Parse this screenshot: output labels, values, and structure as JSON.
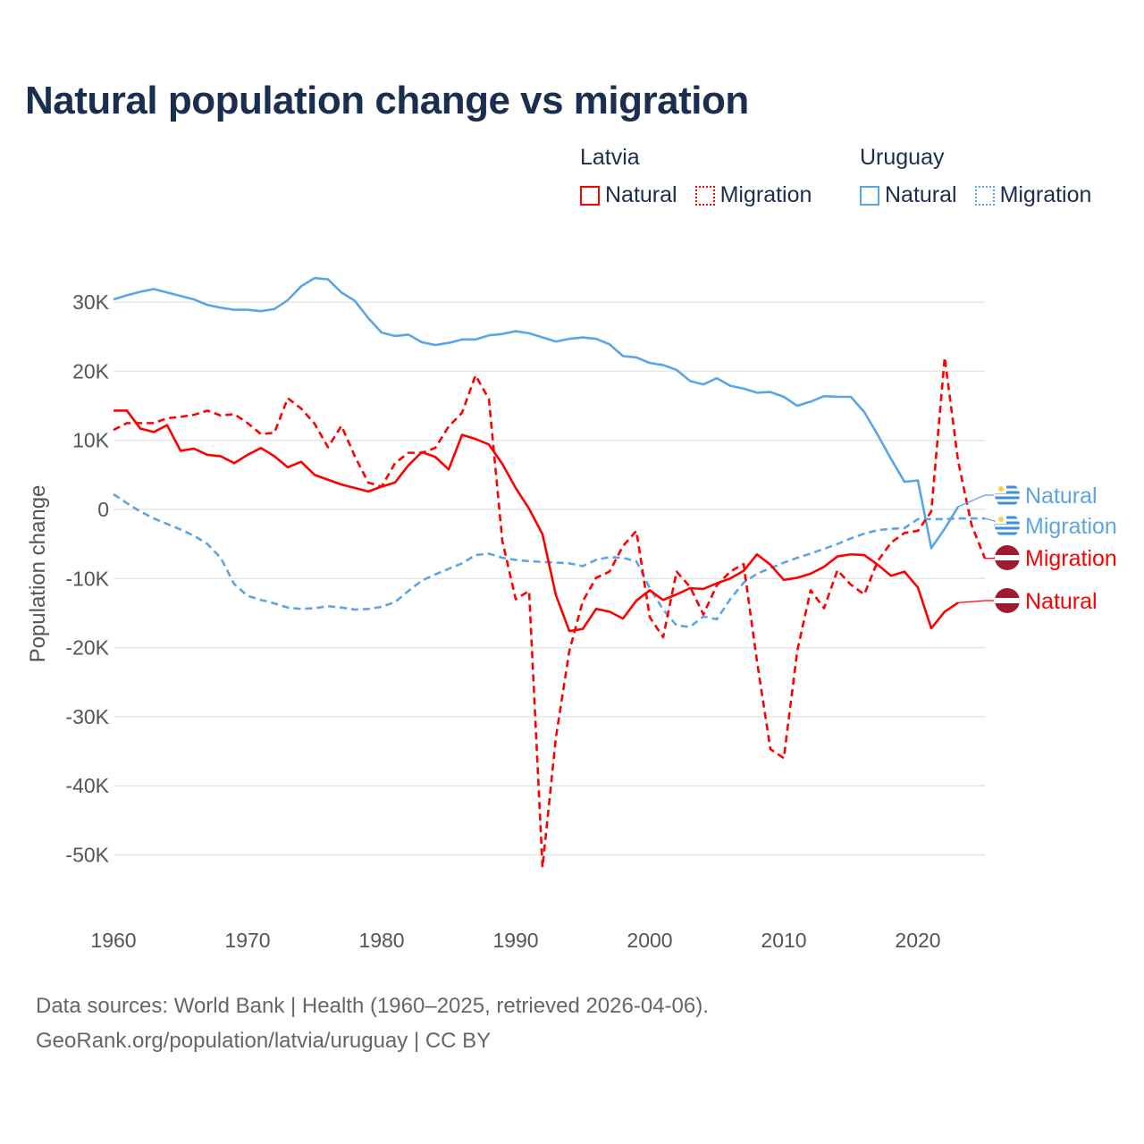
{
  "chart_data": {
    "type": "line",
    "title": "Natural population change vs migration",
    "ylabel": "Population change",
    "xlabel": "",
    "ylim": [
      -55000,
      35000
    ],
    "xlim": [
      1960,
      2025
    ],
    "grid": true,
    "legend_placement": "top-right",
    "y_ticks": [
      {
        "v": 30000,
        "label": "30K"
      },
      {
        "v": 20000,
        "label": "20K"
      },
      {
        "v": 10000,
        "label": "10K"
      },
      {
        "v": 0,
        "label": "0"
      },
      {
        "v": -10000,
        "label": "-10K"
      },
      {
        "v": -20000,
        "label": "-20K"
      },
      {
        "v": -30000,
        "label": "-30K"
      },
      {
        "v": -40000,
        "label": "-40K"
      },
      {
        "v": -50000,
        "label": "-50K"
      }
    ],
    "x_ticks": [
      {
        "v": 1960,
        "label": "1960"
      },
      {
        "v": 1970,
        "label": "1970"
      },
      {
        "v": 1980,
        "label": "1980"
      },
      {
        "v": 1990,
        "label": "1990"
      },
      {
        "v": 2000,
        "label": "2000"
      },
      {
        "v": 2010,
        "label": "2010"
      },
      {
        "v": 2020,
        "label": "2020"
      }
    ],
    "legend": [
      {
        "group": "Latvia",
        "items": [
          {
            "label": "Natural",
            "style": "solid",
            "color": "#ff0000"
          },
          {
            "label": "Migration",
            "style": "dotted",
            "color": "#ff0000"
          }
        ]
      },
      {
        "group": "Uruguay",
        "items": [
          {
            "label": "Natural",
            "style": "solid",
            "color": "#5aa5e8"
          },
          {
            "label": "Migration",
            "style": "dotted",
            "color": "#5aa5e8"
          }
        ]
      }
    ],
    "series": [
      {
        "name": "Uruguay Natural",
        "country": "Uruguay",
        "kind": "Natural",
        "color": "#5aa5e8",
        "dashed": false,
        "end_label": "Natural",
        "flag": "uruguay",
        "start": 1960,
        "values": [
          30.4,
          31.0,
          31.5,
          31.9,
          31.4,
          30.9,
          30.4,
          29.6,
          29.2,
          28.9,
          28.9,
          28.7,
          29.0,
          30.3,
          32.3,
          33.5,
          33.3,
          31.4,
          30.2,
          27.7,
          25.6,
          25.1,
          25.3,
          24.2,
          23.8,
          24.1,
          24.6,
          24.6,
          25.2,
          25.4,
          25.8,
          25.5,
          24.9,
          24.3,
          24.7,
          24.9,
          24.7,
          23.9,
          22.2,
          22.0,
          21.2,
          20.9,
          20.2,
          18.6,
          18.1,
          19.0,
          17.9,
          17.5,
          16.9,
          17.0,
          16.3,
          15.0,
          15.6,
          16.4,
          16.3,
          16.3,
          14.1,
          10.8,
          7.3,
          4.0,
          4.2,
          -5.6,
          -2.8,
          0.4
        ]
      },
      {
        "name": "Uruguay Migration",
        "country": "Uruguay",
        "kind": "Migration",
        "color": "#5aa5e8",
        "dashed": true,
        "end_label": "Migration",
        "flag": "uruguay",
        "start": 1960,
        "values": [
          2.2,
          0.9,
          -0.3,
          -1.3,
          -2.1,
          -2.9,
          -3.8,
          -5.0,
          -7.0,
          -10.8,
          -12.5,
          -13.1,
          -13.6,
          -14.2,
          -14.4,
          -14.3,
          -14.0,
          -14.2,
          -14.5,
          -14.4,
          -14.1,
          -13.4,
          -11.8,
          -10.3,
          -9.4,
          -8.6,
          -7.8,
          -6.6,
          -6.4,
          -7.0,
          -7.3,
          -7.5,
          -7.6,
          -7.7,
          -7.8,
          -8.2,
          -7.3,
          -6.9,
          -7.0,
          -7.5,
          -11.4,
          -14.5,
          -16.8,
          -17.0,
          -15.5,
          -15.9,
          -13.0,
          -10.6,
          -9.3,
          -8.5,
          -7.7,
          -7.0,
          -6.4,
          -5.7,
          -5.0,
          -4.2,
          -3.5,
          -3.0,
          -2.8,
          -2.7,
          -1.4,
          -1.4,
          -1.4,
          -1.3,
          -1.3,
          -1.3
        ]
      },
      {
        "name": "Latvia Migration",
        "country": "Latvia",
        "kind": "Migration",
        "color": "#ff0000",
        "dashed": true,
        "end_label": "Migration",
        "flag": "latvia",
        "start": 1960,
        "values": [
          11.5,
          12.5,
          12.5,
          12.5,
          13.2,
          13.4,
          13.7,
          14.3,
          13.6,
          13.8,
          12.5,
          10.9,
          11.1,
          16.1,
          14.6,
          12.4,
          9.0,
          12.1,
          7.7,
          3.9,
          3.3,
          6.7,
          8.2,
          8.2,
          8.9,
          12.0,
          14.0,
          19.4,
          16.0,
          -4.5,
          -13.0,
          -11.8,
          -51.8,
          -33.0,
          -20.5,
          -13.3,
          -9.9,
          -9.0,
          -5.3,
          -3.1,
          -15.6,
          -18.5,
          -9.0,
          -11.2,
          -15.2,
          -11.0,
          -9.0,
          -7.9,
          -22.0,
          -34.7,
          -36.0,
          -20.5,
          -11.7,
          -14.3,
          -8.8,
          -10.9,
          -12.3,
          -7.5,
          -4.8,
          -3.4,
          -3.1,
          -0.3,
          22.0,
          7.0,
          -2.2,
          -7.1
        ]
      },
      {
        "name": "Latvia Natural",
        "country": "Latvia",
        "kind": "Natural",
        "color": "#ff0000",
        "dashed": false,
        "end_label": "Natural",
        "flag": "latvia",
        "start": 1960,
        "values": [
          14.3,
          14.3,
          11.7,
          11.2,
          12.2,
          8.5,
          8.8,
          7.9,
          7.7,
          6.7,
          7.9,
          8.9,
          7.7,
          6.1,
          6.9,
          5.0,
          4.3,
          3.6,
          3.1,
          2.6,
          3.3,
          3.9,
          6.4,
          8.3,
          7.6,
          5.8,
          10.8,
          10.2,
          9.4,
          6.6,
          3.1,
          0.1,
          -3.6,
          -12.4,
          -17.6,
          -17.3,
          -14.4,
          -14.8,
          -15.8,
          -13.2,
          -11.7,
          -13.1,
          -12.3,
          -11.4,
          -11.5,
          -10.7,
          -10.0,
          -8.9,
          -6.5,
          -8.0,
          -10.2,
          -9.9,
          -9.3,
          -8.3,
          -6.8,
          -6.5,
          -6.6,
          -8.0,
          -9.6,
          -9.0,
          -11.3,
          -17.2,
          -14.8,
          -13.5
        ]
      }
    ],
    "value_units": "thousands"
  },
  "legend": {
    "latvia": {
      "title": "Latvia",
      "natural": "Natural",
      "migration": "Migration"
    },
    "uruguay": {
      "title": "Uruguay",
      "natural": "Natural",
      "migration": "Migration"
    }
  },
  "footer": {
    "line1": "Data sources: World Bank | Health (1960–2025, retrieved 2026-04-06).",
    "line2": "GeoRank.org/population/latvia/uruguay | CC BY"
  }
}
